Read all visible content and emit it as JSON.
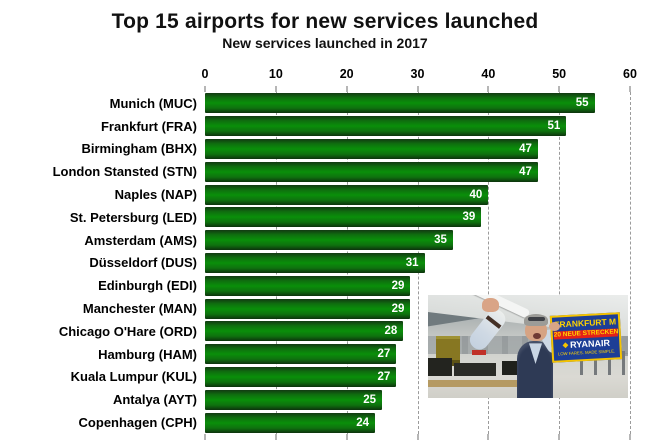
{
  "chart_data": {
    "type": "bar",
    "orientation": "horizontal",
    "title": "Top 15 airports for new services launched",
    "subtitle": "New services launched in 2017",
    "categories": [
      "Munich (MUC)",
      "Frankfurt (FRA)",
      "Birmingham (BHX)",
      "London Stansted (STN)",
      "Naples (NAP)",
      "St. Petersburg (LED)",
      "Amsterdam (AMS)",
      "Düsseldorf (DUS)",
      "Edinburgh (EDI)",
      "Manchester (MAN)",
      "Chicago O'Hare (ORD)",
      "Hamburg (HAM)",
      "Kuala Lumpur (KUL)",
      "Antalya (AYT)",
      "Copenhagen (CPH)"
    ],
    "values": [
      55,
      51,
      47,
      47,
      40,
      39,
      35,
      31,
      29,
      29,
      28,
      27,
      27,
      25,
      24
    ],
    "xlabel": "",
    "ylabel": "",
    "xlim": [
      0,
      60
    ],
    "x_ticks": [
      0,
      10,
      20,
      30,
      40,
      50,
      60
    ],
    "grid": "vertical-dashed",
    "legend": "none",
    "value_label_position": "inside-end"
  },
  "photo_overlay": {
    "description": "man-waving-in-airport-terminal-holding-sign",
    "sign": {
      "line1": "FRANKFURT M",
      "line2": "20 NEUE STRECKEN",
      "brand": "RYANAIR",
      "tagline": "LOW FARES. MADE SIMPLE."
    }
  },
  "colors": {
    "bar_main": "#0a8f0a",
    "bar_edge_dark": "#123a12",
    "gridline": "#9b9b9b",
    "text": "#000000",
    "value_text": "#ffffff",
    "background": "#ffffff",
    "sign_bg": "#1d3e96",
    "sign_border": "#f5c400",
    "sign_red": "#e32119"
  }
}
